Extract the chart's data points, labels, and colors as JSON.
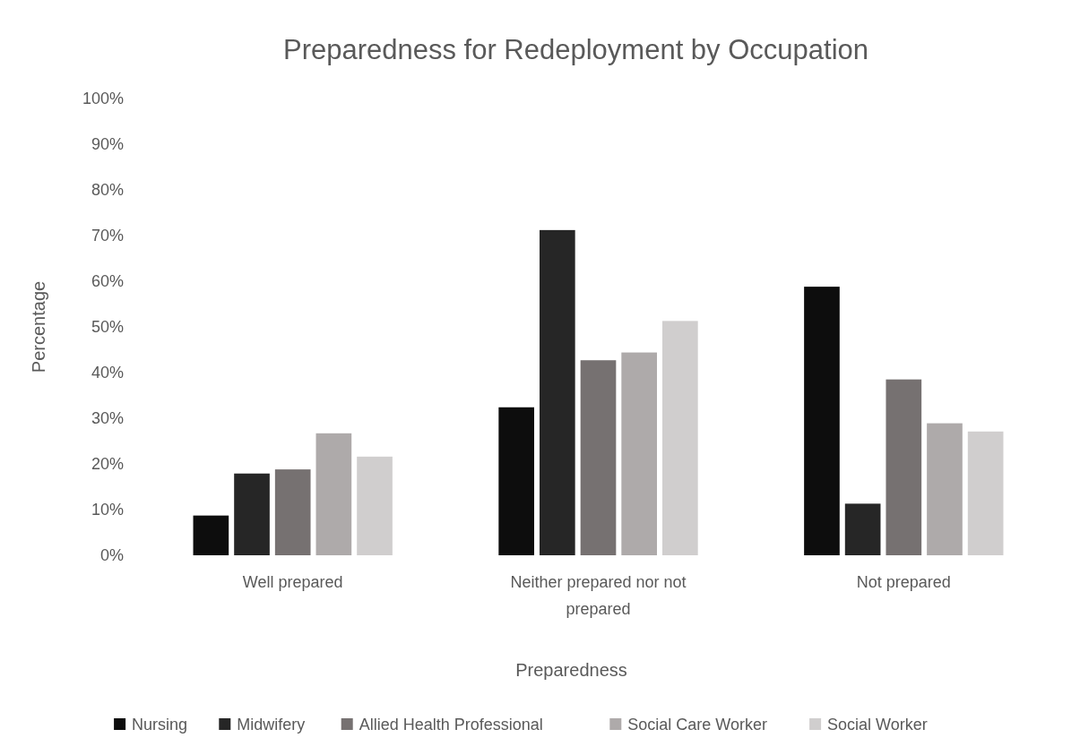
{
  "chart_data": {
    "type": "bar",
    "title": "Preparedness for Redeployment by Occupation",
    "xlabel": "Preparedness",
    "ylabel": "Percentage",
    "categories": [
      "Well prepared",
      "Neither prepared nor not prepared",
      "Not prepared"
    ],
    "series": [
      {
        "name": "Nursing",
        "color": "#0d0d0d",
        "values": [
          8.7,
          32.4,
          58.8
        ]
      },
      {
        "name": "Midwifery",
        "color": "#262626",
        "values": [
          17.9,
          71.2,
          11.3
        ]
      },
      {
        "name": "Allied Health Professional",
        "color": "#767171",
        "values": [
          18.8,
          42.7,
          38.5
        ]
      },
      {
        "name": "Social Care Worker",
        "color": "#aeaaaa",
        "values": [
          26.7,
          44.4,
          28.9
        ]
      },
      {
        "name": "Social Worker",
        "color": "#d0cece",
        "values": [
          21.6,
          51.3,
          27.1
        ]
      }
    ],
    "ylim": [
      0,
      100
    ],
    "yticks": [
      {
        "value": 0,
        "label": "0%"
      },
      {
        "value": 10,
        "label": "10%"
      },
      {
        "value": 20,
        "label": "20%"
      },
      {
        "value": 30,
        "label": "30%"
      },
      {
        "value": 40,
        "label": "40%"
      },
      {
        "value": 50,
        "label": "50%"
      },
      {
        "value": 60,
        "label": "60%"
      },
      {
        "value": 70,
        "label": "70%"
      },
      {
        "value": 80,
        "label": "80%"
      },
      {
        "value": 90,
        "label": "90%"
      },
      {
        "value": 100,
        "label": "100%"
      }
    ],
    "legend": "bottom"
  }
}
